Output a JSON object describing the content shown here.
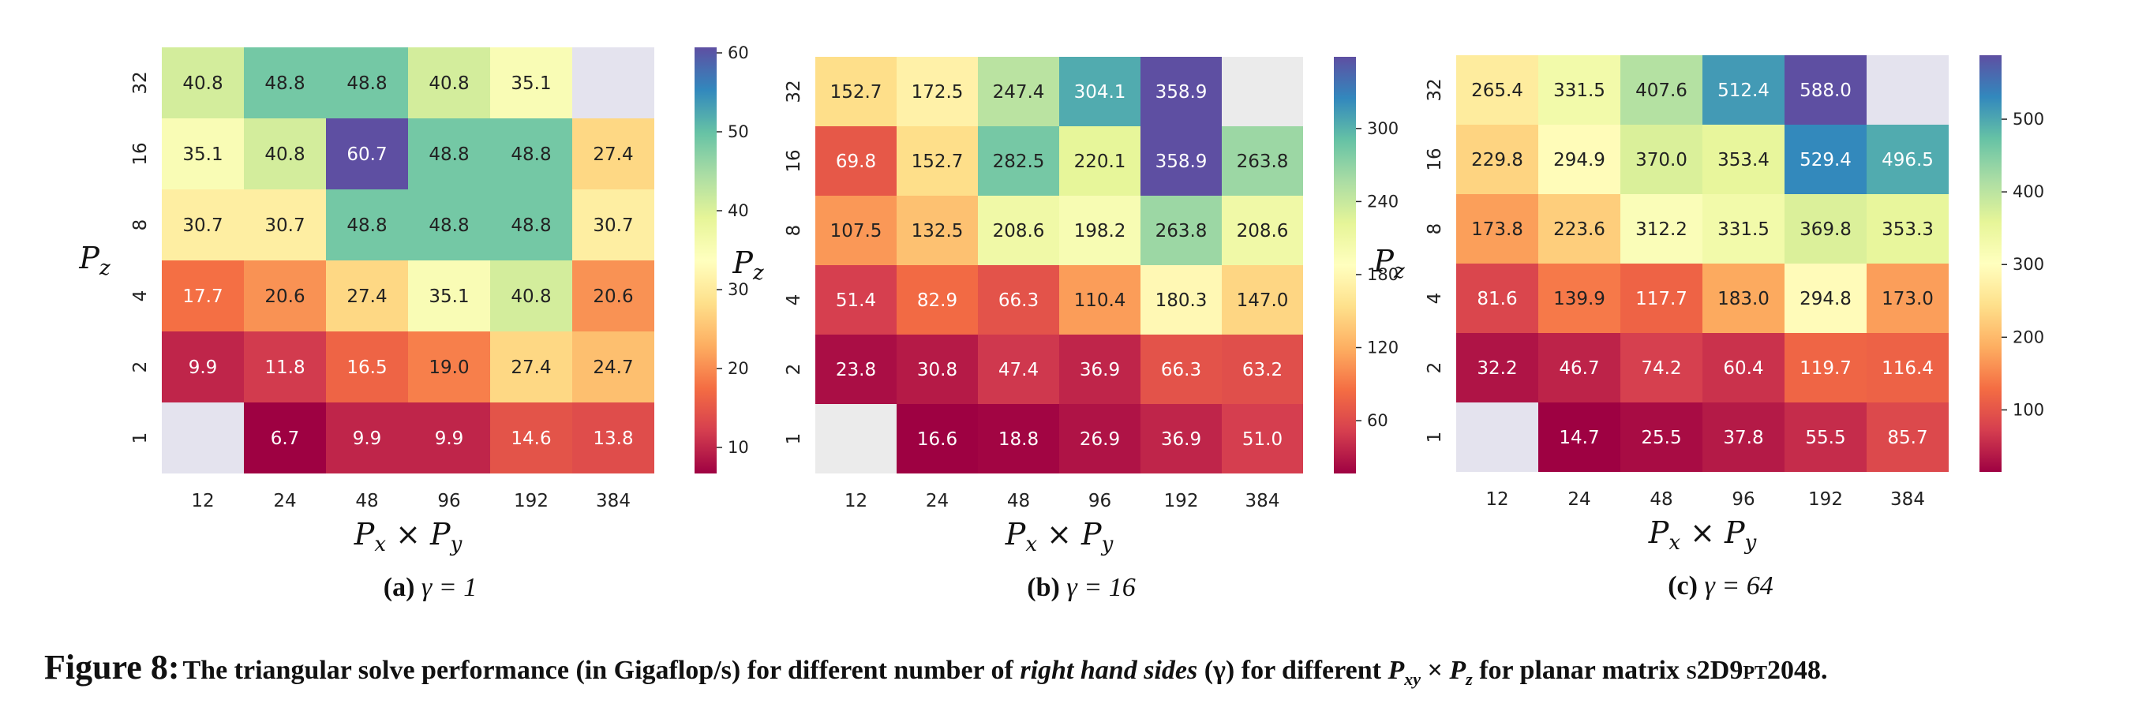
{
  "figure_label": "Figure 8:",
  "caption_parts": {
    "a": "The triangular solve performance (in Gigaflop/s) for different number of ",
    "b": "right hand sides",
    "c": " (γ) for different ",
    "d": "P",
    "d_sub": "xy",
    "e": " × ",
    "f": "P",
    "f_sub": "z",
    "g": " for planar matrix ",
    "h": "s2D9pt2048."
  },
  "chart_data": [
    {
      "type": "heatmap",
      "subcaption": {
        "letter": "(a)",
        "text": "γ = 1"
      },
      "xlabel": "P_x × P_y",
      "ylabel": "P_z",
      "x_categories": [
        "12",
        "24",
        "48",
        "96",
        "192",
        "384"
      ],
      "y_categories": [
        "32",
        "16",
        "8",
        "4",
        "2",
        "1"
      ],
      "values": [
        [
          40.8,
          48.8,
          48.8,
          40.8,
          35.1,
          null
        ],
        [
          35.1,
          40.8,
          60.7,
          48.8,
          48.8,
          27.4
        ],
        [
          30.7,
          30.7,
          48.8,
          48.8,
          48.8,
          30.7
        ],
        [
          17.7,
          20.6,
          27.4,
          35.1,
          40.8,
          20.6
        ],
        [
          9.9,
          11.8,
          16.5,
          19.0,
          27.4,
          24.7
        ],
        [
          null,
          6.7,
          9.9,
          9.9,
          14.6,
          13.8
        ]
      ],
      "cell_labels": [
        [
          "40.8",
          "48.8",
          "48.8",
          "40.8",
          "35.1",
          ""
        ],
        [
          "35.1",
          "40.8",
          "60.7",
          "48.8",
          "48.8",
          "27.4"
        ],
        [
          "30.7",
          "30.7",
          "48.8",
          "48.8",
          "48.8",
          "30.7"
        ],
        [
          "17.7",
          "20.6",
          "27.4",
          "35.1",
          "40.8",
          "20.6"
        ],
        [
          "9.9",
          "11.8",
          "16.5",
          "19.0",
          "27.4",
          "24.7"
        ],
        [
          "",
          "6.7",
          "9.9",
          "9.9",
          "14.6",
          "13.8"
        ]
      ],
      "colorbar": {
        "vmin": 6.7,
        "vmax": 60.7,
        "ticks": [
          "10",
          "20",
          "30",
          "40",
          "50",
          "60"
        ]
      },
      "missing_color": "#e4e3ee",
      "colormap": "Spectral"
    },
    {
      "type": "heatmap",
      "subcaption": {
        "letter": "(b)",
        "text": "γ = 16"
      },
      "xlabel": "P_x × P_y",
      "ylabel": "P_z",
      "x_categories": [
        "12",
        "24",
        "48",
        "96",
        "192",
        "384"
      ],
      "y_categories": [
        "32",
        "16",
        "8",
        "4",
        "2",
        "1"
      ],
      "values": [
        [
          152.7,
          172.5,
          247.4,
          304.1,
          358.9,
          null
        ],
        [
          69.8,
          152.7,
          282.5,
          220.1,
          358.9,
          263.8
        ],
        [
          107.5,
          132.5,
          208.6,
          198.2,
          263.8,
          208.6
        ],
        [
          51.4,
          82.9,
          66.3,
          110.4,
          180.3,
          147.0
        ],
        [
          23.8,
          30.8,
          47.4,
          36.9,
          66.3,
          63.2
        ],
        [
          null,
          16.6,
          18.8,
          26.9,
          36.9,
          51.0
        ]
      ],
      "cell_labels": [
        [
          "152.7",
          "172.5",
          "247.4",
          "304.1",
          "358.9",
          ""
        ],
        [
          "69.8",
          "152.7",
          "282.5",
          "220.1",
          "358.9",
          "263.8"
        ],
        [
          "107.5",
          "132.5",
          "208.6",
          "198.2",
          "263.8",
          "208.6"
        ],
        [
          "51.4",
          "82.9",
          "66.3",
          "110.4",
          "180.3",
          "147.0"
        ],
        [
          "23.8",
          "30.8",
          "47.4",
          "36.9",
          "66.3",
          "63.2"
        ],
        [
          "",
          "16.6",
          "18.8",
          "26.9",
          "36.9",
          "51.0"
        ]
      ],
      "colorbar": {
        "vmin": 16.6,
        "vmax": 358.9,
        "ticks": [
          "60",
          "120",
          "180",
          "240",
          "300"
        ]
      },
      "missing_color": "#ebebeb",
      "colormap": "Spectral"
    },
    {
      "type": "heatmap",
      "subcaption": {
        "letter": "(c)",
        "text": "γ = 64"
      },
      "xlabel": "P_x × P_y",
      "ylabel": "P_z",
      "x_categories": [
        "12",
        "24",
        "48",
        "96",
        "192",
        "384"
      ],
      "y_categories": [
        "32",
        "16",
        "8",
        "4",
        "2",
        "1"
      ],
      "values": [
        [
          265.4,
          331.5,
          407.6,
          512.4,
          588.0,
          null
        ],
        [
          229.8,
          294.9,
          370.0,
          353.4,
          529.4,
          496.5
        ],
        [
          173.8,
          223.6,
          312.2,
          331.5,
          369.8,
          353.3
        ],
        [
          81.6,
          139.9,
          117.7,
          183.0,
          294.8,
          173.0
        ],
        [
          32.2,
          46.7,
          74.2,
          60.4,
          119.7,
          116.4
        ],
        [
          null,
          14.7,
          25.5,
          37.8,
          55.5,
          85.7
        ]
      ],
      "cell_labels": [
        [
          "265.4",
          "331.5",
          "407.6",
          "512.4",
          "588.0",
          ""
        ],
        [
          "229.8",
          "294.9",
          "370.0",
          "353.4",
          "529.4",
          "496.5"
        ],
        [
          "173.8",
          "223.6",
          "312.2",
          "331.5",
          "369.8",
          "353.3"
        ],
        [
          "81.6",
          "139.9",
          "117.7",
          "183.0",
          "294.8",
          "173.0"
        ],
        [
          "32.2",
          "46.7",
          "74.2",
          "60.4",
          "119.7",
          "116.4"
        ],
        [
          "",
          "14.7",
          "25.5",
          "37.8",
          "55.5",
          "85.7"
        ]
      ],
      "colorbar": {
        "vmin": 14.7,
        "vmax": 588.0,
        "ticks": [
          "100",
          "200",
          "300",
          "400",
          "500"
        ]
      },
      "missing_color": "#e4e3ee",
      "colormap": "Spectral"
    }
  ]
}
